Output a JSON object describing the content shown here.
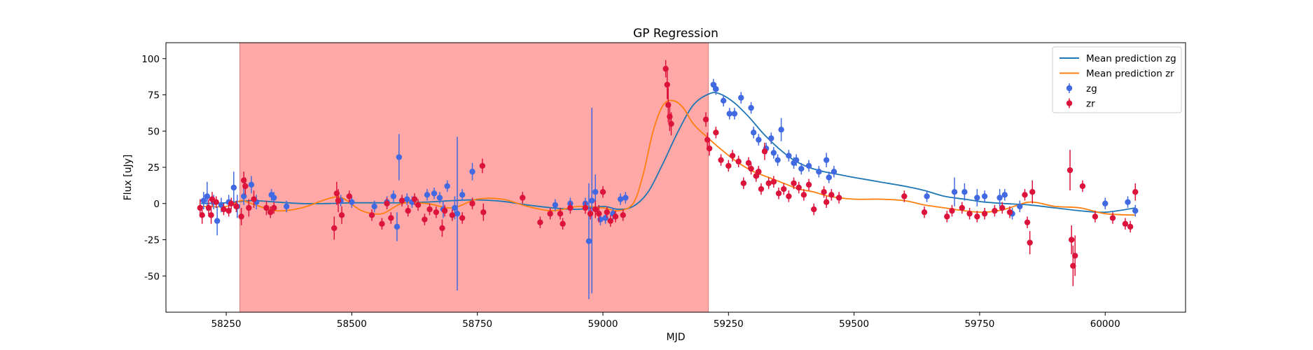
{
  "chart_data": {
    "type": "scatter",
    "title": "GP Regression",
    "xlabel": "MJD",
    "ylabel": "Flux [uJy]",
    "xlim": [
      58130,
      60160
    ],
    "ylim": [
      -75,
      111
    ],
    "x_ticks": [
      58250,
      58500,
      58750,
      59000,
      59250,
      59500,
      59750,
      60000
    ],
    "y_ticks": [
      -50,
      -25,
      0,
      25,
      50,
      75,
      100
    ],
    "grid": false,
    "legend_position": "top-right",
    "shaded_region": {
      "x_start": 58277,
      "x_end": 59210,
      "color": "#ffa8a8"
    },
    "legend": [
      {
        "label": "Mean prediction zg",
        "kind": "line",
        "color": "#1f77b4"
      },
      {
        "label": "Mean prediction zr",
        "kind": "line",
        "color": "#ff7f0e"
      },
      {
        "label": "zg",
        "kind": "marker",
        "color": "#4169e1"
      },
      {
        "label": "zr",
        "kind": "marker",
        "color": "#dc143c"
      }
    ],
    "series": [
      {
        "name": "Mean prediction zg",
        "kind": "line",
        "color": "#1f77b4",
        "x": [
          58200,
          58250,
          58300,
          58350,
          58400,
          58450,
          58500,
          58550,
          58600,
          58650,
          58700,
          58750,
          58800,
          58850,
          58900,
          58950,
          59000,
          59030,
          59060,
          59090,
          59120,
          59150,
          59180,
          59210,
          59230,
          59260,
          59290,
          59320,
          59350,
          59380,
          59410,
          59440,
          59470,
          59500,
          59550,
          59600,
          59640,
          59680,
          59720,
          59760,
          59800,
          59850,
          59900,
          59950,
          60000,
          60060
        ],
        "y": [
          0,
          0.5,
          2,
          1,
          0,
          0,
          0.5,
          0.5,
          0.5,
          1,
          2,
          2.5,
          1.5,
          -1,
          -3,
          -4,
          -2,
          -4,
          -2,
          8,
          28,
          50,
          68,
          75.5,
          76,
          70,
          60,
          48,
          38,
          30,
          25,
          22,
          20,
          18,
          15,
          12,
          9,
          5,
          3,
          1,
          0,
          -1,
          -3,
          -5,
          -6,
          -3
        ]
      },
      {
        "name": "Mean prediction zr",
        "kind": "line",
        "color": "#ff7f0e",
        "x": [
          58200,
          58250,
          58280,
          58300,
          58350,
          58400,
          58450,
          58480,
          58520,
          58560,
          58600,
          58650,
          58700,
          58750,
          58800,
          58850,
          58900,
          58950,
          59000,
          59030,
          59060,
          59080,
          59100,
          59120,
          59140,
          59160,
          59180,
          59210,
          59240,
          59270,
          59300,
          59330,
          59360,
          59390,
          59420,
          59450,
          59500,
          59550,
          59600,
          59640,
          59680,
          59720,
          59760,
          59800,
          59850,
          59900,
          59950,
          60000,
          60060
        ],
        "y": [
          -2,
          -2,
          2,
          0,
          -5,
          -3,
          3,
          4,
          -5,
          -7,
          0,
          0,
          -3,
          3,
          3,
          -2,
          -5,
          -2,
          -3,
          -5,
          0,
          20,
          50,
          68,
          71,
          66,
          55,
          45,
          36,
          28,
          22,
          18,
          14,
          10,
          8,
          5,
          3,
          3,
          2,
          -1,
          -3,
          -5,
          -6,
          -4,
          1,
          -2,
          -3,
          -7,
          -8
        ]
      },
      {
        "name": "zg",
        "kind": "errorbar",
        "color": "#4169e1",
        "points": [
          [
            58205,
            2,
            6
          ],
          [
            58212,
            5,
            10
          ],
          [
            58225,
            1,
            5
          ],
          [
            58232,
            -12,
            10
          ],
          [
            58240,
            -1,
            5
          ],
          [
            58255,
            1,
            5
          ],
          [
            58265,
            11,
            11
          ],
          [
            58272,
            -2,
            8
          ],
          [
            58285,
            5,
            6
          ],
          [
            58300,
            13,
            6
          ],
          [
            58310,
            1,
            5
          ],
          [
            58340,
            6,
            4
          ],
          [
            58345,
            4,
            4
          ],
          [
            58370,
            -2,
            4
          ],
          [
            58478,
            2,
            4
          ],
          [
            58500,
            1,
            4
          ],
          [
            58545,
            -2,
            4
          ],
          [
            58570,
            1,
            4
          ],
          [
            58583,
            5,
            4
          ],
          [
            58590,
            -16,
            10
          ],
          [
            58594,
            32,
            16
          ],
          [
            58610,
            3,
            4
          ],
          [
            58620,
            1,
            4
          ],
          [
            58650,
            6,
            4
          ],
          [
            58664,
            7,
            4
          ],
          [
            58675,
            4,
            4
          ],
          [
            58682,
            -4,
            6
          ],
          [
            58690,
            12,
            4
          ],
          [
            58705,
            -3,
            8
          ],
          [
            58710,
            -7,
            53
          ],
          [
            58720,
            6,
            4
          ],
          [
            58740,
            22,
            6
          ],
          [
            58905,
            -1,
            4
          ],
          [
            58935,
            0,
            4
          ],
          [
            58965,
            0,
            4
          ],
          [
            58972,
            -26,
            40
          ],
          [
            58978,
            2,
            64
          ],
          [
            58985,
            8,
            12
          ],
          [
            58995,
            -11,
            4
          ],
          [
            59005,
            -10,
            4
          ],
          [
            59020,
            -7,
            4
          ],
          [
            59035,
            3,
            4
          ],
          [
            59045,
            4,
            4
          ],
          [
            59220,
            82,
            4
          ],
          [
            59225,
            79,
            4
          ],
          [
            59240,
            71,
            4
          ],
          [
            59252,
            62,
            4
          ],
          [
            59262,
            62,
            4
          ],
          [
            59275,
            73,
            4
          ],
          [
            59295,
            66,
            4
          ],
          [
            59300,
            49,
            4
          ],
          [
            59310,
            44,
            4
          ],
          [
            59325,
            38,
            4
          ],
          [
            59335,
            45,
            4
          ],
          [
            59340,
            35,
            4
          ],
          [
            59348,
            30,
            4
          ],
          [
            59355,
            51,
            8
          ],
          [
            59370,
            33,
            4
          ],
          [
            59380,
            28,
            4
          ],
          [
            59385,
            30,
            4
          ],
          [
            59395,
            24,
            4
          ],
          [
            59410,
            26,
            4
          ],
          [
            59430,
            22,
            4
          ],
          [
            59445,
            30,
            5
          ],
          [
            59450,
            18,
            4
          ],
          [
            59460,
            22,
            4
          ],
          [
            59645,
            5,
            4
          ],
          [
            59700,
            8,
            10
          ],
          [
            59720,
            8,
            6
          ],
          [
            59745,
            4,
            6
          ],
          [
            59760,
            5,
            4
          ],
          [
            59790,
            4,
            6
          ],
          [
            59800,
            6,
            4
          ],
          [
            59815,
            -7,
            4
          ],
          [
            59830,
            -2,
            4
          ],
          [
            60000,
            0,
            4
          ],
          [
            60045,
            1,
            4
          ],
          [
            60060,
            -5,
            4
          ]
        ]
      },
      {
        "name": "zr",
        "kind": "errorbar",
        "color": "#dc143c",
        "points": [
          [
            58198,
            -3,
            6
          ],
          [
            58202,
            -8,
            6
          ],
          [
            58215,
            -3,
            6
          ],
          [
            58220,
            -8,
            6
          ],
          [
            58222,
            3,
            5
          ],
          [
            58230,
            1,
            4
          ],
          [
            58245,
            -4,
            4
          ],
          [
            58255,
            -5,
            4
          ],
          [
            58260,
            0,
            4
          ],
          [
            58270,
            -2,
            4
          ],
          [
            58280,
            -9,
            6
          ],
          [
            58285,
            16,
            6
          ],
          [
            58288,
            12,
            6
          ],
          [
            58295,
            -3,
            6
          ],
          [
            58305,
            3,
            6
          ],
          [
            58330,
            -3,
            5
          ],
          [
            58338,
            -6,
            4
          ],
          [
            58345,
            -3,
            4
          ],
          [
            58465,
            -17,
            8
          ],
          [
            58470,
            7,
            8
          ],
          [
            58473,
            2,
            8
          ],
          [
            58480,
            -8,
            6
          ],
          [
            58495,
            5,
            4
          ],
          [
            58540,
            -8,
            4
          ],
          [
            58560,
            -14,
            4
          ],
          [
            58570,
            0,
            4
          ],
          [
            58578,
            -10,
            4
          ],
          [
            58600,
            2,
            4
          ],
          [
            58612,
            -5,
            4
          ],
          [
            58625,
            3,
            4
          ],
          [
            58632,
            -1,
            4
          ],
          [
            58645,
            -11,
            4
          ],
          [
            58655,
            -4,
            4
          ],
          [
            58668,
            -6,
            4
          ],
          [
            58680,
            -17,
            6
          ],
          [
            58685,
            -5,
            4
          ],
          [
            58700,
            -8,
            4
          ],
          [
            58720,
            -10,
            4
          ],
          [
            58740,
            0,
            4
          ],
          [
            58760,
            26,
            5
          ],
          [
            58762,
            -6,
            6
          ],
          [
            58840,
            4,
            4
          ],
          [
            58875,
            -13,
            4
          ],
          [
            58895,
            -7,
            4
          ],
          [
            58915,
            -7,
            4
          ],
          [
            58920,
            -14,
            4
          ],
          [
            58935,
            -3,
            4
          ],
          [
            58965,
            -3,
            4
          ],
          [
            58975,
            -7,
            4
          ],
          [
            58985,
            -4,
            6
          ],
          [
            58992,
            -7,
            6
          ],
          [
            59000,
            8,
            4
          ],
          [
            59008,
            -6,
            4
          ],
          [
            59015,
            -12,
            4
          ],
          [
            59025,
            -9,
            4
          ],
          [
            59040,
            -8,
            4
          ],
          [
            59125,
            93,
            6
          ],
          [
            59128,
            82,
            10
          ],
          [
            59130,
            68,
            12
          ],
          [
            59133,
            60,
            10
          ],
          [
            59136,
            55,
            8
          ],
          [
            59205,
            58,
            5
          ],
          [
            59208,
            44,
            5
          ],
          [
            59212,
            38,
            5
          ],
          [
            59225,
            49,
            4
          ],
          [
            59235,
            30,
            4
          ],
          [
            59250,
            26,
            4
          ],
          [
            59258,
            33,
            4
          ],
          [
            59270,
            29,
            4
          ],
          [
            59280,
            14,
            4
          ],
          [
            59290,
            28,
            4
          ],
          [
            59295,
            24,
            4
          ],
          [
            59305,
            19,
            4
          ],
          [
            59310,
            22,
            4
          ],
          [
            59315,
            10,
            4
          ],
          [
            59322,
            36,
            6
          ],
          [
            59330,
            14,
            4
          ],
          [
            59340,
            15,
            4
          ],
          [
            59350,
            7,
            4
          ],
          [
            59360,
            10,
            4
          ],
          [
            59370,
            5,
            4
          ],
          [
            59380,
            14,
            4
          ],
          [
            59390,
            11,
            4
          ],
          [
            59400,
            6,
            4
          ],
          [
            59410,
            13,
            4
          ],
          [
            59420,
            -4,
            4
          ],
          [
            59440,
            8,
            4
          ],
          [
            59445,
            1,
            4
          ],
          [
            59455,
            6,
            4
          ],
          [
            59470,
            4,
            4
          ],
          [
            59600,
            5,
            4
          ],
          [
            59640,
            -6,
            4
          ],
          [
            59685,
            -9,
            4
          ],
          [
            59695,
            -5,
            4
          ],
          [
            59715,
            -3,
            4
          ],
          [
            59730,
            -7,
            4
          ],
          [
            59745,
            -9,
            4
          ],
          [
            59760,
            -7,
            4
          ],
          [
            59780,
            -5,
            4
          ],
          [
            59795,
            -3,
            4
          ],
          [
            59810,
            -6,
            4
          ],
          [
            59840,
            6,
            4
          ],
          [
            59845,
            -13,
            4
          ],
          [
            59850,
            -27,
            8
          ],
          [
            59855,
            8,
            8
          ],
          [
            59930,
            23,
            14
          ],
          [
            59933,
            -25,
            10
          ],
          [
            59936,
            -43,
            14
          ],
          [
            59940,
            -36,
            14
          ],
          [
            59955,
            12,
            4
          ],
          [
            59980,
            -9,
            4
          ],
          [
            60015,
            -10,
            4
          ],
          [
            60040,
            -14,
            4
          ],
          [
            60050,
            -16,
            4
          ],
          [
            60060,
            8,
            6
          ]
        ]
      }
    ]
  }
}
